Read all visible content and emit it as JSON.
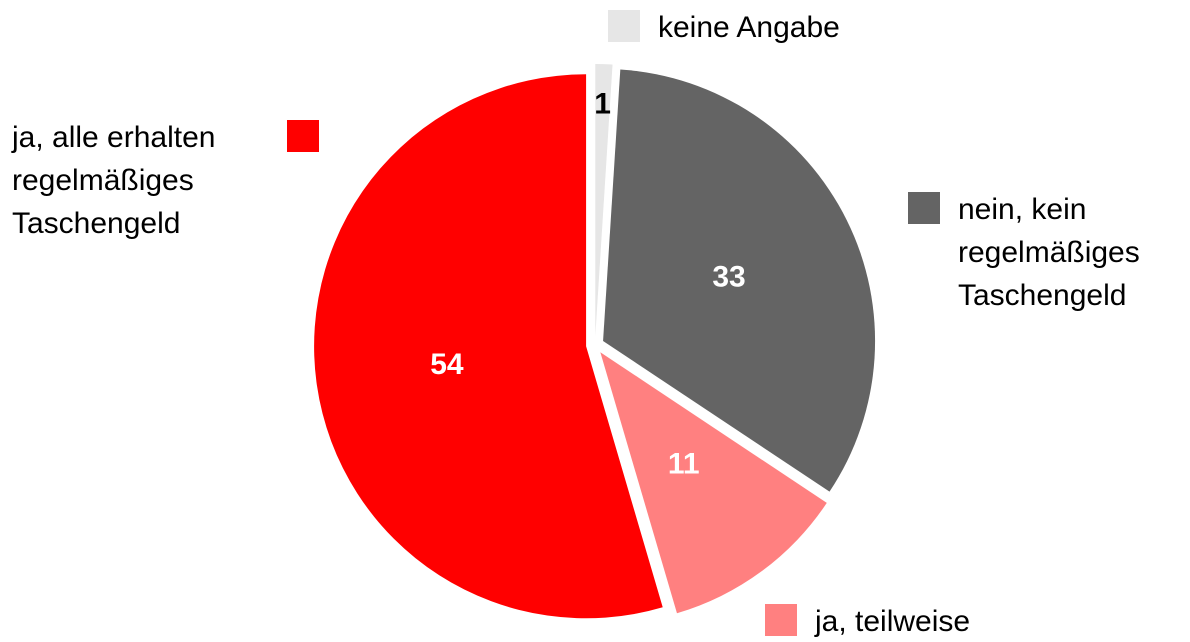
{
  "chart_data": {
    "type": "pie",
    "categories": [
      "keine Angabe",
      "nein, kein regelmäßiges Taschengeld",
      "ja, teilweise",
      "ja, alle erhalten regelmäßiges Taschengeld"
    ],
    "values": [
      1,
      33,
      11,
      54
    ],
    "colors": [
      "#e6e6e6",
      "#646464",
      "#ff8080",
      "#ff0000"
    ],
    "label_colors": [
      "#000000",
      "#ffffff",
      "#ffffff",
      "#ffffff"
    ]
  }
}
